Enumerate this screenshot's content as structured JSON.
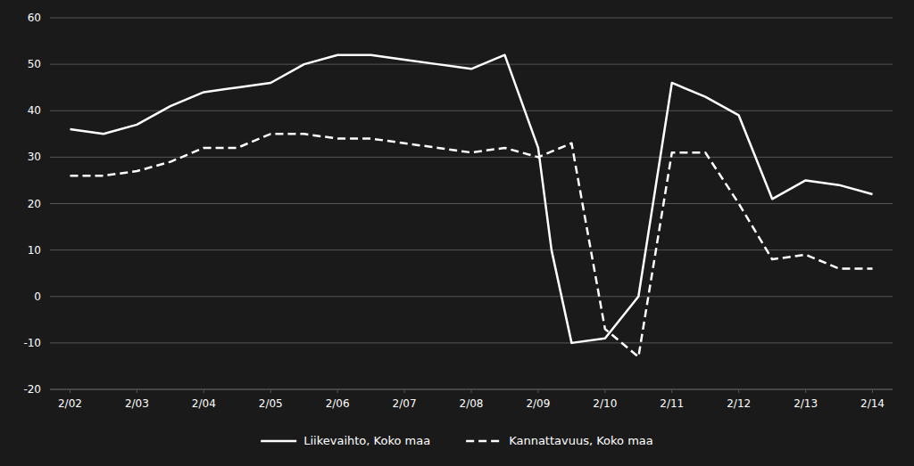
{
  "chart_data": {
    "type": "line",
    "background_color": "#1a1a1a",
    "text_color": "#ffffff",
    "grid_color": "#555555",
    "xlim": [
      -0.3,
      12.3
    ],
    "xticks": [
      {
        "value": 0,
        "label": "2/02"
      },
      {
        "value": 1,
        "label": "2/03"
      },
      {
        "value": 2,
        "label": "2/04"
      },
      {
        "value": 3,
        "label": "2/05"
      },
      {
        "value": 4,
        "label": "2/06"
      },
      {
        "value": 5,
        "label": "2/07"
      },
      {
        "value": 6,
        "label": "2/08"
      },
      {
        "value": 7,
        "label": "2/09"
      },
      {
        "value": 8,
        "label": "2/10"
      },
      {
        "value": 9,
        "label": "2/11"
      },
      {
        "value": 10,
        "label": "2/12"
      },
      {
        "value": 11,
        "label": "2/13"
      },
      {
        "value": 12,
        "label": "2/14"
      }
    ],
    "ylim": [
      -20,
      60
    ],
    "yticks": [
      -20,
      -10,
      0,
      10,
      20,
      30,
      40,
      50,
      60
    ],
    "grid": true,
    "legend": "bottom",
    "series": [
      {
        "name": "Liikevaihto, Koko maa",
        "color": "#ffffff",
        "line_style": "solid",
        "x": [
          0,
          0.5,
          1,
          1.5,
          2,
          2.5,
          3,
          3.5,
          4,
          4.5,
          5,
          5.5,
          6,
          6.5,
          7,
          7.2,
          7.5,
          8,
          8.5,
          9,
          9.5,
          10,
          10.5,
          11,
          11.5,
          12
        ],
        "values": [
          36,
          35,
          37,
          41,
          44,
          45,
          46,
          50,
          52,
          52,
          51,
          50,
          49,
          52,
          32,
          10,
          -10,
          -9,
          0,
          46,
          43,
          39,
          21,
          25,
          24,
          22
        ]
      },
      {
        "name": "Kannattavuus, Koko maa",
        "color": "#ffffff",
        "line_style": "dashed",
        "x": [
          0,
          0.5,
          1,
          1.5,
          2,
          2.5,
          3,
          3.5,
          4,
          4.5,
          5,
          5.5,
          6,
          6.5,
          7,
          7.5,
          8,
          8.5,
          9,
          9.5,
          10,
          10.5,
          11,
          11.5,
          12
        ],
        "values": [
          26,
          26,
          27,
          29,
          32,
          32,
          35,
          35,
          34,
          34,
          33,
          32,
          31,
          32,
          30,
          33,
          -7,
          -13,
          31,
          31,
          20,
          8,
          9,
          6,
          6
        ]
      }
    ]
  }
}
